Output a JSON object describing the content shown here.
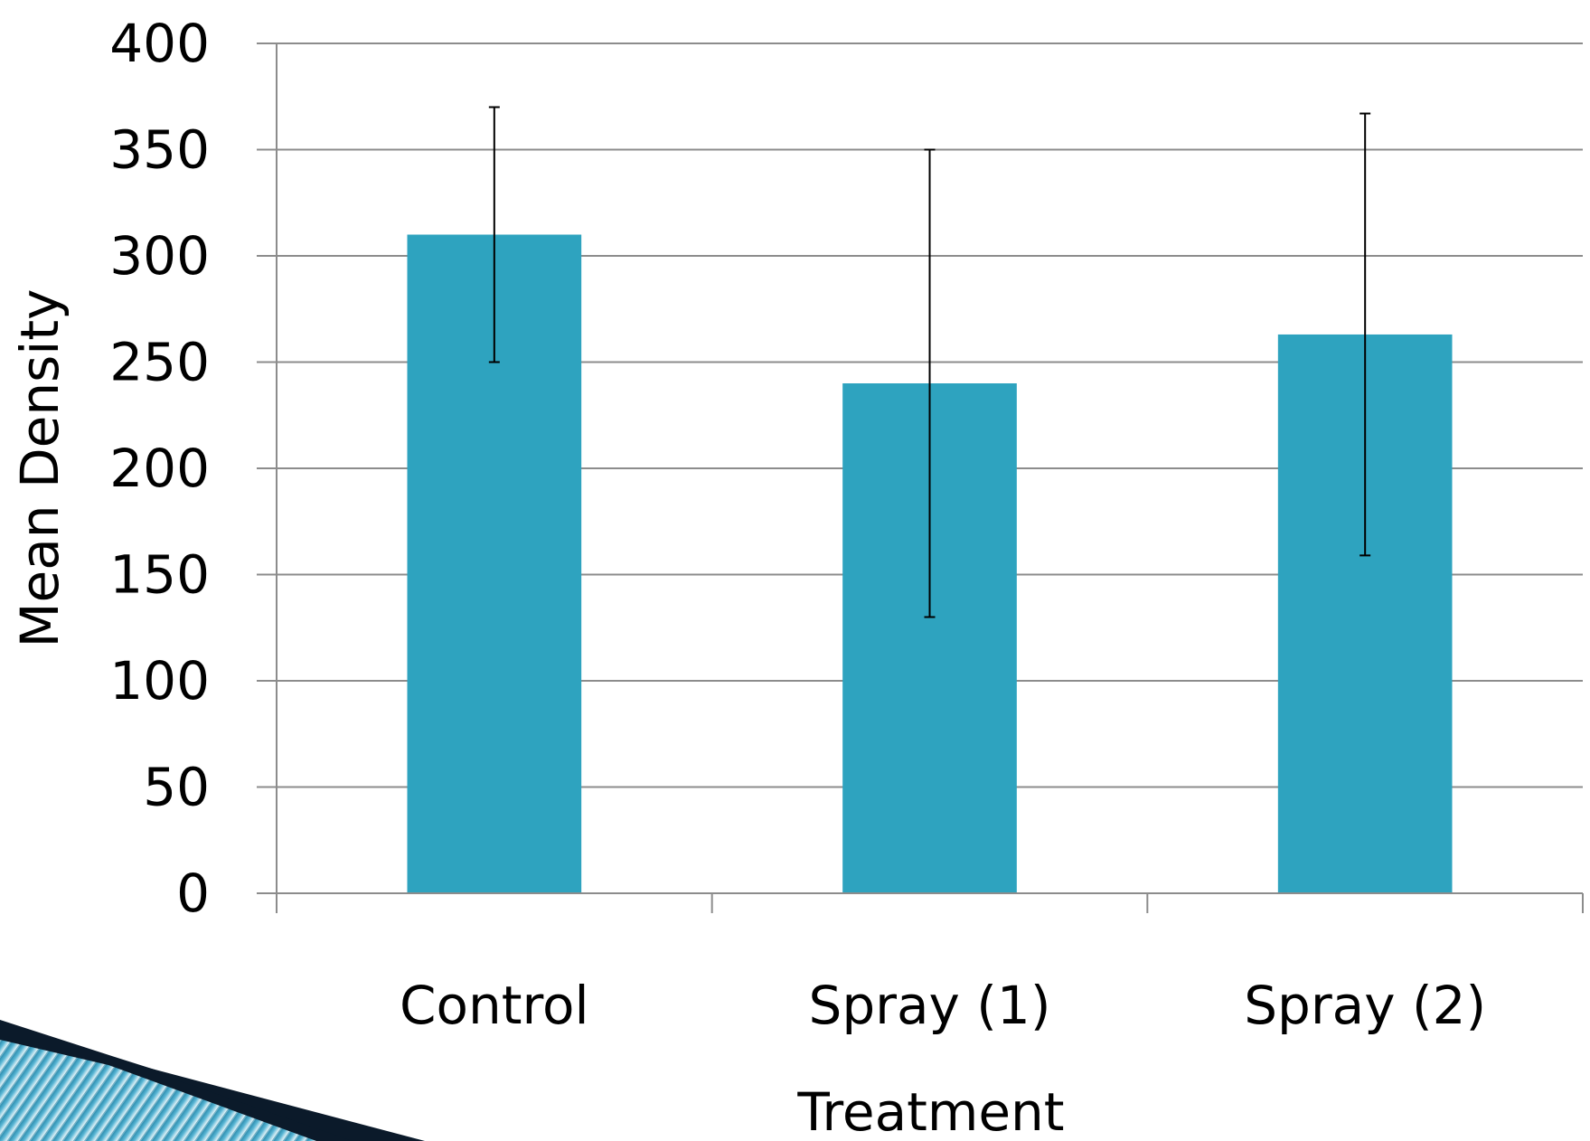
{
  "chart_data": {
    "type": "bar",
    "categories": [
      "Control",
      "Spray (1)",
      "Spray (2)"
    ],
    "series": [
      {
        "values": [
          310,
          240,
          263
        ],
        "error_low": [
          250,
          130,
          159
        ],
        "error_high": [
          370,
          350,
          367
        ]
      }
    ],
    "xlabel": "Treatment",
    "ylabel": "Mean Density",
    "ylim": [
      0,
      400
    ],
    "yticks": [
      "0",
      "50",
      "100",
      "150",
      "200",
      "250",
      "300",
      "350",
      "400"
    ],
    "grid": true,
    "legend": "none"
  },
  "colors": {
    "bar": "#2ea3bf",
    "grid": "#8c8c8c",
    "axis": "#8c8c8c",
    "error_bar": "#000000",
    "corner_stripe_dark": "#0b1a2a",
    "corner_stripe_light": "#3aa6c8"
  }
}
